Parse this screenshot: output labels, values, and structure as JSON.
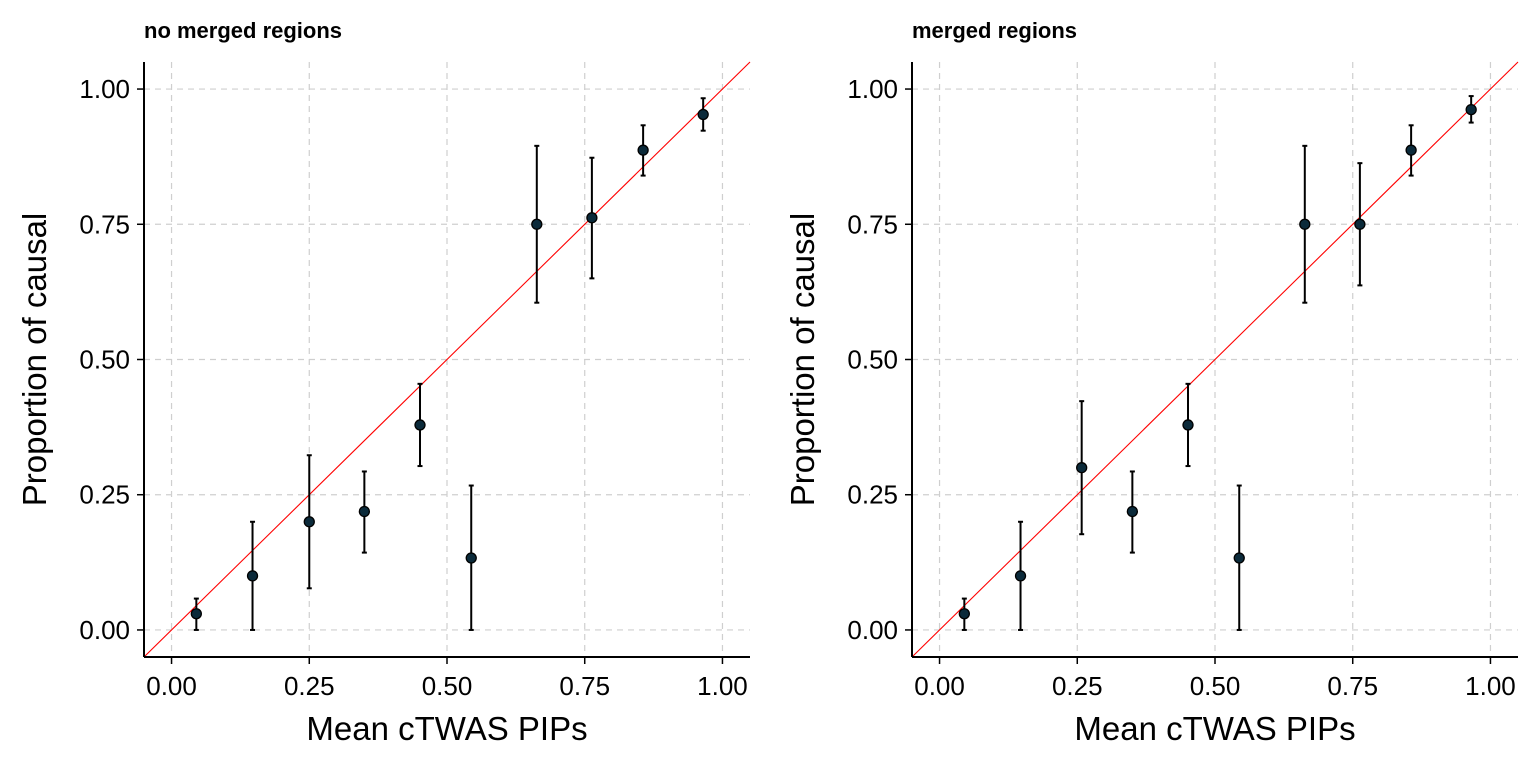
{
  "chart_data": [
    {
      "type": "scatter",
      "title": "no merged regions",
      "xlabel": "Mean cTWAS PIPs",
      "ylabel": "Proportion of causal",
      "xlim": [
        -0.05,
        1.05
      ],
      "ylim": [
        -0.05,
        1.05
      ],
      "x_ticks": [
        "0.00",
        "0.25",
        "0.50",
        "0.75",
        "1.00"
      ],
      "y_ticks": [
        "0.00",
        "0.25",
        "0.50",
        "0.75",
        "1.00"
      ],
      "grid": true,
      "reference_line": "y = x",
      "series": [
        {
          "name": "calibration",
          "x": [
            0.045,
            0.147,
            0.25,
            0.35,
            0.451,
            0.544,
            0.663,
            0.763,
            0.856,
            0.965
          ],
          "y": [
            0.03,
            0.1,
            0.2,
            0.219,
            0.379,
            0.133,
            0.75,
            0.762,
            0.887,
            0.953
          ],
          "ymin": [
            0.0,
            0.0,
            0.077,
            0.143,
            0.303,
            0.0,
            0.605,
            0.65,
            0.84,
            0.923
          ],
          "ymax": [
            0.058,
            0.2,
            0.323,
            0.293,
            0.455,
            0.267,
            0.895,
            0.873,
            0.933,
            0.983
          ]
        }
      ]
    },
    {
      "type": "scatter",
      "title": "merged regions",
      "xlabel": "Mean cTWAS PIPs",
      "ylabel": "Proportion of causal",
      "xlim": [
        -0.05,
        1.05
      ],
      "ylim": [
        -0.05,
        1.05
      ],
      "x_ticks": [
        "0.00",
        "0.25",
        "0.50",
        "0.75",
        "1.00"
      ],
      "y_ticks": [
        "0.00",
        "0.25",
        "0.50",
        "0.75",
        "1.00"
      ],
      "grid": true,
      "reference_line": "y = x",
      "series": [
        {
          "name": "calibration",
          "x": [
            0.045,
            0.147,
            0.258,
            0.35,
            0.451,
            0.544,
            0.663,
            0.763,
            0.856,
            0.965
          ],
          "y": [
            0.03,
            0.1,
            0.3,
            0.219,
            0.379,
            0.133,
            0.75,
            0.75,
            0.887,
            0.962
          ],
          "ymin": [
            0.0,
            0.0,
            0.177,
            0.143,
            0.303,
            0.0,
            0.605,
            0.637,
            0.84,
            0.938
          ],
          "ymax": [
            0.058,
            0.2,
            0.423,
            0.293,
            0.455,
            0.267,
            0.895,
            0.863,
            0.933,
            0.987
          ]
        }
      ]
    }
  ],
  "colors": {
    "point_fill": "#0b2a3a",
    "point_stroke": "#000000",
    "errorbar": "#000000",
    "reference_line": "#ff0000",
    "grid": "#cfcfcf",
    "axis": "#000000"
  }
}
